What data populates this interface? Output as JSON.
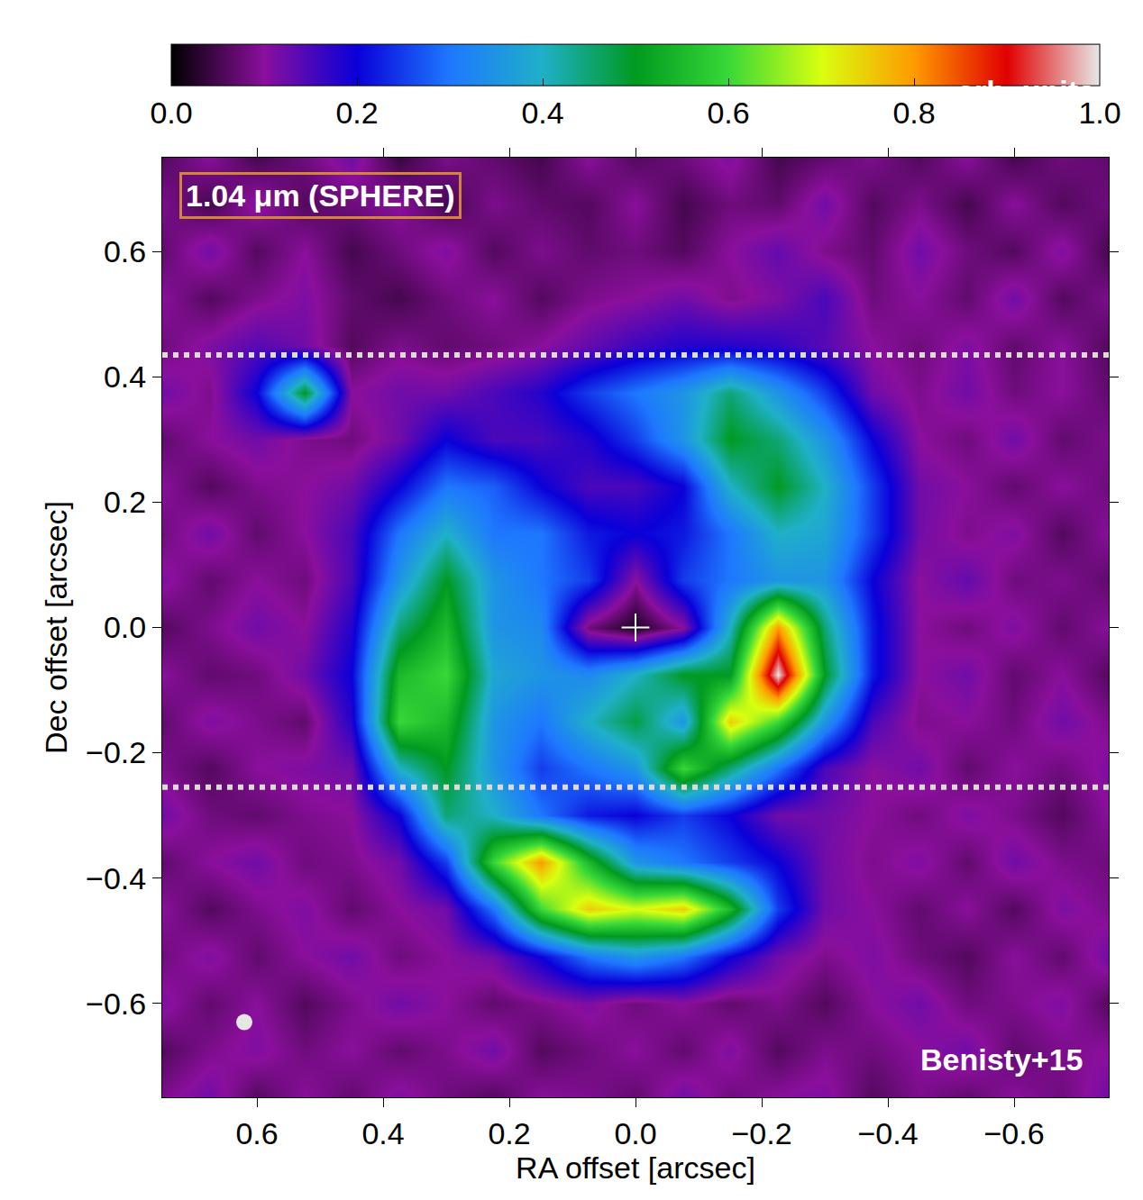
{
  "chart_data": {
    "type": "heatmap",
    "annotations": [
      "1.04 μm (SPHERE)",
      "Benisty+15"
    ],
    "xlabel": "RA offset [arcsec]",
    "ylabel": "Dec offset [arcsec]",
    "grid": false,
    "x": [
      0.75,
      0.675,
      0.6,
      0.525,
      0.45,
      0.375,
      0.3,
      0.225,
      0.15,
      0.075,
      0,
      -0.075,
      -0.15,
      -0.225,
      -0.3,
      -0.375,
      -0.45,
      -0.525,
      -0.6,
      -0.675,
      -0.75
    ],
    "y": [
      0.75,
      0.675,
      0.6,
      0.525,
      0.45,
      0.375,
      0.3,
      0.225,
      0.15,
      0.075,
      0,
      -0.075,
      -0.15,
      -0.225,
      -0.3,
      -0.375,
      -0.45,
      -0.525,
      -0.6,
      -0.675,
      -0.75
    ],
    "z": [
      [
        0.06,
        0.1,
        0.05,
        0.08,
        0.12,
        0.04,
        0.09,
        0.07,
        0.05,
        0.1,
        0.06,
        0.08,
        0.11,
        0.05,
        0.07,
        0.09,
        0.06,
        0.1,
        0.05,
        0.08,
        0.07
      ],
      [
        0.09,
        0.05,
        0.11,
        0.06,
        0.08,
        0.1,
        0.05,
        0.09,
        0.07,
        0.06,
        0.1,
        0.05,
        0.08,
        0.07,
        0.12,
        0.06,
        0.09,
        0.05,
        0.1,
        0.06,
        0.08
      ],
      [
        0.07,
        0.12,
        0.06,
        0.1,
        0.05,
        0.08,
        0.11,
        0.06,
        0.09,
        0.07,
        0.08,
        0.06,
        0.1,
        0.13,
        0.09,
        0.07,
        0.12,
        0.08,
        0.06,
        0.11,
        0.05
      ],
      [
        0.1,
        0.06,
        0.09,
        0.11,
        0.07,
        0.05,
        0.08,
        0.1,
        0.06,
        0.09,
        0.1,
        0.12,
        0.09,
        0.11,
        0.15,
        0.08,
        0.1,
        0.07,
        0.12,
        0.06,
        0.09
      ],
      [
        0.08,
        0.11,
        0.14,
        0.12,
        0.06,
        0.09,
        0.07,
        0.08,
        0.1,
        0.13,
        0.16,
        0.18,
        0.18,
        0.17,
        0.14,
        0.1,
        0.08,
        0.11,
        0.07,
        0.1,
        0.06
      ],
      [
        0.12,
        0.09,
        0.2,
        0.5,
        0.1,
        0.12,
        0.12,
        0.15,
        0.18,
        0.25,
        0.3,
        0.35,
        0.45,
        0.35,
        0.25,
        0.12,
        0.09,
        0.12,
        0.08,
        0.1,
        0.07
      ],
      [
        0.07,
        0.1,
        0.12,
        0.09,
        0.08,
        0.12,
        0.2,
        0.15,
        0.15,
        0.18,
        0.25,
        0.35,
        0.5,
        0.45,
        0.35,
        0.2,
        0.1,
        0.08,
        0.12,
        0.07,
        0.09
      ],
      [
        0.1,
        0.06,
        0.09,
        0.1,
        0.12,
        0.2,
        0.3,
        0.28,
        0.2,
        0.15,
        0.15,
        0.2,
        0.4,
        0.5,
        0.4,
        0.25,
        0.12,
        0.1,
        0.07,
        0.1,
        0.08
      ],
      [
        0.08,
        0.12,
        0.07,
        0.1,
        0.15,
        0.3,
        0.4,
        0.3,
        0.3,
        0.22,
        0.2,
        0.22,
        0.3,
        0.4,
        0.38,
        0.25,
        0.12,
        0.09,
        0.11,
        0.06,
        0.1
      ],
      [
        0.11,
        0.07,
        0.1,
        0.08,
        0.15,
        0.35,
        0.5,
        0.35,
        0.3,
        0.25,
        0.1,
        0.25,
        0.3,
        0.35,
        0.35,
        0.2,
        0.1,
        0.13,
        0.08,
        0.09,
        0.07
      ],
      [
        0.06,
        0.09,
        0.12,
        0.1,
        0.18,
        0.45,
        0.55,
        0.35,
        0.33,
        0.08,
        0.02,
        0.1,
        0.4,
        0.8,
        0.45,
        0.22,
        0.1,
        0.08,
        0.11,
        0.07,
        0.1
      ],
      [
        0.1,
        0.07,
        0.08,
        0.12,
        0.2,
        0.55,
        0.6,
        0.38,
        0.35,
        0.33,
        0.4,
        0.5,
        0.5,
        1.0,
        0.5,
        0.22,
        0.1,
        0.12,
        0.07,
        0.1,
        0.06
      ],
      [
        0.07,
        0.11,
        0.09,
        0.07,
        0.18,
        0.6,
        0.55,
        0.35,
        0.3,
        0.4,
        0.48,
        0.35,
        0.75,
        0.6,
        0.35,
        0.15,
        0.09,
        0.1,
        0.08,
        0.12,
        0.09
      ],
      [
        0.09,
        0.06,
        0.1,
        0.11,
        0.12,
        0.4,
        0.5,
        0.35,
        0.25,
        0.3,
        0.35,
        0.6,
        0.45,
        0.3,
        0.15,
        0.1,
        0.12,
        0.07,
        0.1,
        0.08,
        0.11
      ],
      [
        0.12,
        0.08,
        0.07,
        0.09,
        0.1,
        0.2,
        0.45,
        0.4,
        0.3,
        0.22,
        0.2,
        0.25,
        0.2,
        0.12,
        0.12,
        0.1,
        0.08,
        0.11,
        0.09,
        0.06,
        0.1
      ],
      [
        0.07,
        0.1,
        0.12,
        0.08,
        0.09,
        0.12,
        0.25,
        0.6,
        0.8,
        0.55,
        0.35,
        0.3,
        0.25,
        0.2,
        0.12,
        0.09,
        0.11,
        0.07,
        0.12,
        0.09,
        0.08
      ],
      [
        0.1,
        0.06,
        0.09,
        0.11,
        0.07,
        0.1,
        0.12,
        0.3,
        0.6,
        0.75,
        0.7,
        0.75,
        0.55,
        0.25,
        0.12,
        0.1,
        0.07,
        0.1,
        0.06,
        0.11,
        0.09
      ],
      [
        0.08,
        0.11,
        0.07,
        0.1,
        0.12,
        0.08,
        0.1,
        0.12,
        0.2,
        0.3,
        0.35,
        0.3,
        0.2,
        0.12,
        0.09,
        0.11,
        0.08,
        0.06,
        0.1,
        0.07,
        0.12
      ],
      [
        0.11,
        0.07,
        0.1,
        0.06,
        0.09,
        0.12,
        0.1,
        0.07,
        0.09,
        0.11,
        0.08,
        0.1,
        0.07,
        0.09,
        0.06,
        0.1,
        0.12,
        0.08,
        0.09,
        0.11,
        0.06
      ],
      [
        0.06,
        0.09,
        0.11,
        0.08,
        0.1,
        0.07,
        0.09,
        0.12,
        0.06,
        0.08,
        0.1,
        0.07,
        0.11,
        0.06,
        0.09,
        0.08,
        0.1,
        0.12,
        0.07,
        0.09,
        0.1
      ],
      [
        0.09,
        0.12,
        0.06,
        0.1,
        0.07,
        0.11,
        0.08,
        0.06,
        0.1,
        0.09,
        0.07,
        0.12,
        0.08,
        0.1,
        0.11,
        0.06,
        0.09,
        0.07,
        0.1,
        0.08,
        0.12
      ]
    ],
    "xlim": [
      0.75,
      -0.75
    ],
    "ylim": [
      -0.75,
      0.75
    ],
    "xticks": [
      0.6,
      0.4,
      0.2,
      {
        "value": 0,
        "label": "0.0"
      },
      {
        "value": -0.2,
        "label": "−0.2"
      },
      {
        "value": -0.4,
        "label": "−0.4"
      },
      {
        "value": -0.6,
        "label": "−0.6"
      }
    ],
    "yticks": [
      {
        "value": -0.6,
        "label": "−0.6"
      },
      {
        "value": -0.4,
        "label": "−0.4"
      },
      {
        "value": -0.2,
        "label": "−0.2"
      },
      {
        "value": 0,
        "label": "0.0"
      },
      0.2,
      0.4,
      0.6
    ],
    "colorbar": {
      "title": "arb. units",
      "range": [
        0,
        1
      ],
      "ticks": [
        {
          "value": 0,
          "label": "0.0"
        },
        0.2,
        0.4,
        0.6,
        0.8,
        {
          "value": 1,
          "label": "1.0"
        }
      ]
    },
    "star": [
      0,
      0
    ],
    "beam": [
      0.62,
      -0.63
    ],
    "hlines": [
      0.435,
      -0.255
    ]
  }
}
